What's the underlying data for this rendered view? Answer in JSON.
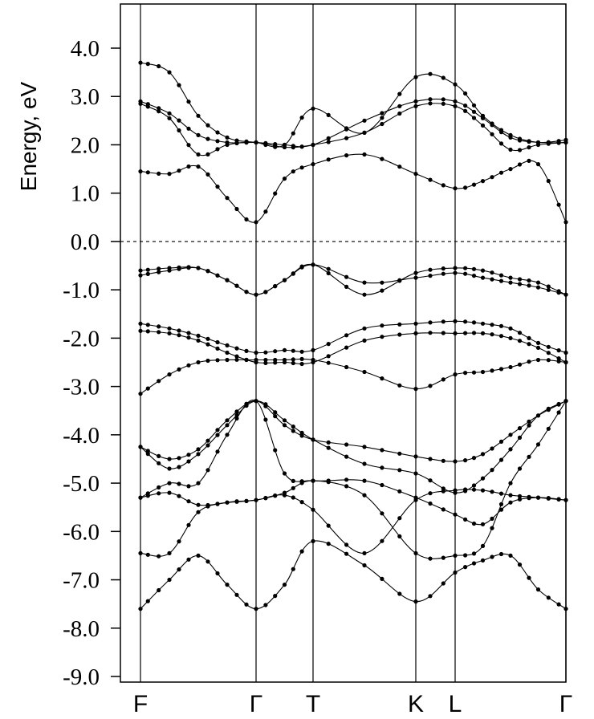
{
  "chart_data": {
    "type": "line",
    "ylabel": "Energy, eV",
    "ylim": [
      -9.0,
      4.0
    ],
    "yticks": [
      4.0,
      3.0,
      2.0,
      1.0,
      0.0,
      -1.0,
      -2.0,
      -3.0,
      -4.0,
      -5.0,
      -6.0,
      -7.0,
      -8.0,
      -9.0
    ],
    "ytick_labels": [
      "4.0",
      "3.0",
      "2.0",
      "1.0",
      "0.0",
      "-1.0",
      "-2.0",
      "-3.0",
      "-4.0",
      "-5.0",
      "-6.0",
      "-7.0",
      "-8.0",
      "-9.0"
    ],
    "kpoints": [
      {
        "label": "F",
        "pos": 0.0
      },
      {
        "label": "Γ",
        "pos": 1.0
      },
      {
        "label": "T",
        "pos": 1.5
      },
      {
        "label": "K",
        "pos": 2.4
      },
      {
        "label": "L",
        "pos": 2.75
      },
      {
        "label": "Γ",
        "pos": 3.75
      }
    ],
    "fermi_level": 0.0,
    "bands": [
      {
        "x": [
          0,
          0.25,
          0.5,
          0.75,
          1.0,
          1.25,
          1.5,
          1.95,
          2.4,
          2.75,
          3.0,
          3.25,
          3.5,
          3.75
        ],
        "y": [
          -7.6,
          -7.0,
          -6.5,
          -7.1,
          -7.6,
          -7.1,
          -6.2,
          -6.7,
          -7.45,
          -6.85,
          -6.6,
          -6.5,
          -7.2,
          -7.6
        ]
      },
      {
        "x": [
          0,
          0.25,
          0.5,
          0.75,
          1.0,
          1.25,
          1.5,
          1.95,
          2.4,
          2.75,
          3.0,
          3.25,
          3.5,
          3.75
        ],
        "y": [
          -6.45,
          -6.45,
          -5.6,
          -5.4,
          -5.35,
          -5.2,
          -4.95,
          -5.25,
          -6.45,
          -6.5,
          -6.3,
          -5.0,
          -4.2,
          -3.3
        ]
      },
      {
        "x": [
          0,
          0.25,
          0.5,
          0.75,
          1.0,
          1.25,
          1.5,
          1.95,
          2.4,
          2.75,
          3.0,
          3.25,
          3.5,
          3.75
        ],
        "y": [
          -5.3,
          -5.2,
          -5.45,
          -5.4,
          -5.35,
          -5.25,
          -5.55,
          -6.45,
          -5.35,
          -5.15,
          -5.15,
          -5.25,
          -5.3,
          -5.35
        ]
      },
      {
        "x": [
          0,
          0.25,
          0.5,
          0.75,
          1.0,
          1.25,
          1.5,
          1.95,
          2.4,
          2.75,
          3.0,
          3.25,
          3.5,
          3.75
        ],
        "y": [
          -5.3,
          -5.0,
          -5.0,
          -4.0,
          -3.3,
          -4.8,
          -4.95,
          -4.95,
          -5.3,
          -5.65,
          -5.85,
          -5.4,
          -5.3,
          -5.35
        ]
      },
      {
        "x": [
          0,
          0.25,
          0.5,
          0.75,
          1.0,
          1.25,
          1.5,
          1.95,
          2.4,
          2.75,
          3.0,
          3.25,
          3.5,
          3.75
        ],
        "y": [
          -4.25,
          -4.7,
          -4.4,
          -3.8,
          -3.3,
          -3.7,
          -4.1,
          -4.6,
          -4.8,
          -5.2,
          -4.9,
          -4.3,
          -3.6,
          -3.3
        ]
      },
      {
        "x": [
          0,
          0.25,
          0.5,
          0.75,
          1.0,
          1.25,
          1.5,
          1.95,
          2.4,
          2.75,
          3.0,
          3.25,
          3.5,
          3.75
        ],
        "y": [
          -4.25,
          -4.5,
          -4.3,
          -3.7,
          -3.3,
          -3.8,
          -4.1,
          -4.25,
          -4.45,
          -4.55,
          -4.4,
          -4.0,
          -3.6,
          -3.3
        ]
      },
      {
        "x": [
          0,
          0.25,
          0.5,
          0.75,
          1.0,
          1.25,
          1.5,
          1.95,
          2.4,
          2.75,
          3.0,
          3.25,
          3.5,
          3.75
        ],
        "y": [
          -3.15,
          -2.75,
          -2.5,
          -2.45,
          -2.45,
          -2.45,
          -2.45,
          -2.7,
          -3.05,
          -2.75,
          -2.7,
          -2.6,
          -2.45,
          -2.5
        ]
      },
      {
        "x": [
          0,
          0.25,
          0.5,
          0.75,
          1.0,
          1.25,
          1.5,
          1.95,
          2.4,
          2.75,
          3.0,
          3.25,
          3.5,
          3.75
        ],
        "y": [
          -1.85,
          -1.9,
          -2.05,
          -2.3,
          -2.5,
          -2.5,
          -2.5,
          -2.05,
          -1.9,
          -1.9,
          -1.9,
          -2.0,
          -2.2,
          -2.5
        ]
      },
      {
        "x": [
          0,
          0.25,
          0.5,
          0.75,
          1.0,
          1.25,
          1.5,
          1.95,
          2.4,
          2.75,
          3.0,
          3.25,
          3.5,
          3.75
        ],
        "y": [
          -1.7,
          -1.8,
          -1.95,
          -2.15,
          -2.3,
          -2.25,
          -2.25,
          -1.8,
          -1.7,
          -1.65,
          -1.7,
          -1.8,
          -2.1,
          -2.3
        ]
      },
      {
        "x": [
          0,
          0.25,
          0.5,
          0.75,
          1.0,
          1.25,
          1.5,
          1.95,
          2.4,
          2.75,
          3.0,
          3.25,
          3.5,
          3.75
        ],
        "y": [
          -0.7,
          -0.6,
          -0.55,
          -0.8,
          -1.1,
          -0.8,
          -0.48,
          -0.85,
          -0.75,
          -0.65,
          -0.75,
          -0.85,
          -0.95,
          -1.1
        ]
      },
      {
        "x": [
          0,
          0.25,
          0.5,
          0.75,
          1.0,
          1.25,
          1.5,
          1.95,
          2.4,
          2.75,
          3.0,
          3.25,
          3.5,
          3.75
        ],
        "y": [
          -0.6,
          -0.55,
          -0.55,
          -0.8,
          -1.1,
          -0.8,
          -0.48,
          -1.1,
          -0.65,
          -0.55,
          -0.6,
          -0.75,
          -0.85,
          -1.1
        ]
      },
      {
        "x": [
          0,
          0.25,
          0.5,
          0.75,
          1.0,
          1.25,
          1.5,
          1.95,
          2.4,
          2.75,
          3.0,
          3.25,
          3.5,
          3.75
        ],
        "y": [
          1.45,
          1.4,
          1.55,
          0.9,
          0.4,
          1.3,
          1.6,
          1.8,
          1.4,
          1.1,
          1.25,
          1.5,
          1.6,
          0.4
        ]
      },
      {
        "x": [
          0,
          0.25,
          0.5,
          0.75,
          1.0,
          1.25,
          1.5,
          1.95,
          2.4,
          2.75,
          3.0,
          3.25,
          3.5,
          3.75
        ],
        "y": [
          2.85,
          2.55,
          1.8,
          2.0,
          2.05,
          1.95,
          2.0,
          2.25,
          2.8,
          2.8,
          2.4,
          1.9,
          2.0,
          2.05
        ]
      },
      {
        "x": [
          0,
          0.25,
          0.5,
          0.75,
          1.0,
          1.25,
          1.5,
          1.95,
          2.4,
          2.75,
          3.0,
          3.25,
          3.5,
          3.75
        ],
        "y": [
          2.9,
          2.65,
          2.2,
          2.05,
          2.05,
          2.0,
          2.0,
          2.5,
          2.9,
          2.9,
          2.55,
          2.15,
          2.05,
          2.05
        ]
      },
      {
        "x": [
          0,
          0.25,
          0.5,
          0.75,
          1.0,
          1.25,
          1.5,
          1.95,
          2.4,
          2.75,
          3.0,
          3.25,
          3.5,
          3.75
        ],
        "y": [
          3.7,
          3.5,
          2.6,
          2.15,
          2.05,
          2.0,
          2.75,
          2.25,
          3.4,
          3.25,
          2.6,
          2.2,
          2.05,
          2.1
        ]
      }
    ]
  }
}
